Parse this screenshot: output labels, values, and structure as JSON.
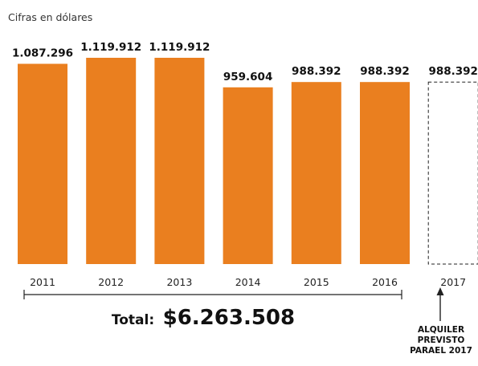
{
  "colors": {
    "bar": "#EA7F1F",
    "projected_stroke": "#222222",
    "text": "#111111"
  },
  "chart_data": {
    "type": "bar",
    "subtitle": "Cifras en dólares",
    "categories": [
      "2011",
      "2012",
      "2013",
      "2014",
      "2015",
      "2016",
      "2017"
    ],
    "values": [
      1087296,
      1119912,
      1119912,
      959604,
      988392,
      988392,
      988392
    ],
    "value_labels": [
      "1.087.296",
      "1.119.912",
      "1.119.912",
      "959.604",
      "988.392",
      "988.392",
      "988.392"
    ],
    "projected": [
      false,
      false,
      false,
      false,
      false,
      false,
      true
    ],
    "ylim": [
      0,
      1119912
    ],
    "grid": false,
    "total": {
      "label": "Total:",
      "value": "$6.263.508"
    },
    "note_lines": [
      "ALQUILER",
      "PREVISTO",
      "PARAEL 2017"
    ]
  }
}
